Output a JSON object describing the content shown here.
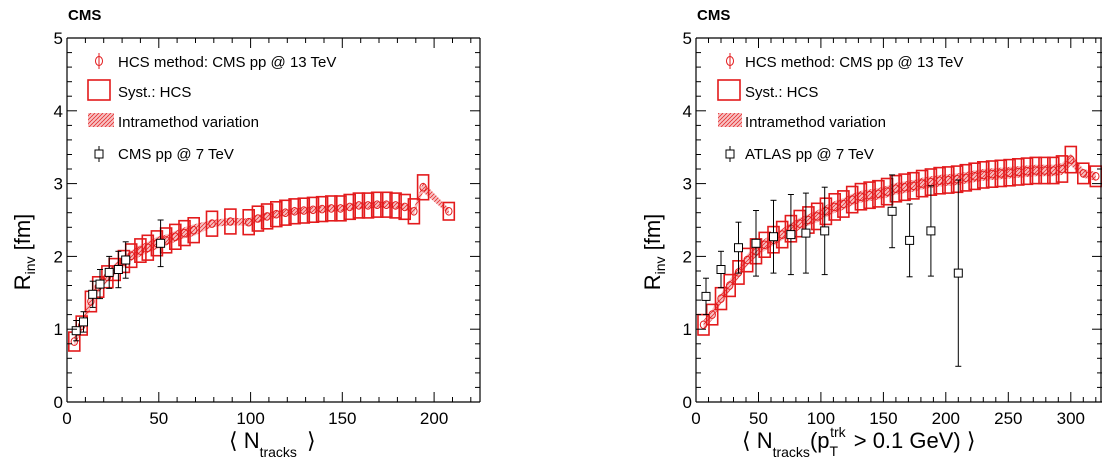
{
  "chart_data": [
    {
      "id": "left",
      "type": "scatter",
      "label": "CMS",
      "xlabel_main": "⟨ N",
      "xlabel_sub": "tracks",
      "xlabel_tail": "⟩",
      "ylabel_main": "R",
      "ylabel_sub": "inv",
      "ylabel_tail": " [fm]",
      "xlim": [
        0,
        225
      ],
      "ylim": [
        0,
        5
      ],
      "xticks": [
        0,
        50,
        100,
        150,
        200
      ],
      "yticks": [
        0,
        1,
        2,
        3,
        4,
        5
      ],
      "legend": {
        "hcs": "HCS method: CMS pp @ 13 TeV",
        "syst": "Syst.: HCS",
        "variation": "Intramethod variation",
        "ref": "CMS pp @ 7 TeV"
      },
      "series": [
        {
          "name": "HCS method: CMS pp @ 13 TeV",
          "x": [
            4,
            8,
            13,
            17,
            22,
            26,
            31,
            35,
            40,
            44,
            49,
            54,
            59,
            64,
            69,
            79,
            89,
            99,
            104,
            109,
            114,
            119,
            124,
            129,
            134,
            139,
            144,
            149,
            154,
            159,
            164,
            169,
            174,
            179,
            184,
            189,
            194,
            208
          ],
          "y": [
            0.83,
            1.05,
            1.38,
            1.58,
            1.72,
            1.82,
            1.93,
            2.01,
            2.08,
            2.12,
            2.18,
            2.22,
            2.27,
            2.32,
            2.36,
            2.45,
            2.48,
            2.47,
            2.52,
            2.55,
            2.58,
            2.6,
            2.62,
            2.63,
            2.64,
            2.65,
            2.66,
            2.66,
            2.68,
            2.7,
            2.7,
            2.71,
            2.71,
            2.7,
            2.68,
            2.62,
            2.95,
            2.62
          ],
          "syst": [
            0.13,
            0.13,
            0.14,
            0.14,
            0.15,
            0.15,
            0.15,
            0.16,
            0.16,
            0.17,
            0.17,
            0.17,
            0.17,
            0.17,
            0.17,
            0.17,
            0.17,
            0.17,
            0.17,
            0.17,
            0.17,
            0.17,
            0.17,
            0.17,
            0.17,
            0.17,
            0.17,
            0.17,
            0.17,
            0.17,
            0.17,
            0.17,
            0.17,
            0.17,
            0.17,
            0.17,
            0.17,
            0.12
          ],
          "var_lo": [
            0.77,
            0.98,
            1.3,
            1.5,
            1.65,
            1.74,
            1.85,
            1.94,
            2.0,
            2.05,
            2.1,
            2.15,
            2.2,
            2.25,
            2.28,
            2.4,
            2.43,
            2.42,
            2.47,
            2.5,
            2.53,
            2.56,
            2.58,
            2.59,
            2.6,
            2.61,
            2.62,
            2.62,
            2.64,
            2.66,
            2.66,
            2.67,
            2.67,
            2.66,
            2.64,
            2.58,
            2.88,
            2.58
          ],
          "var_hi": [
            0.9,
            1.12,
            1.46,
            1.66,
            1.8,
            1.9,
            2.01,
            2.08,
            2.16,
            2.2,
            2.27,
            2.3,
            2.35,
            2.4,
            2.44,
            2.5,
            2.53,
            2.52,
            2.57,
            2.6,
            2.63,
            2.64,
            2.66,
            2.67,
            2.68,
            2.69,
            2.7,
            2.7,
            2.72,
            2.74,
            2.74,
            2.75,
            2.75,
            2.74,
            2.72,
            2.66,
            3.02,
            2.66
          ]
        },
        {
          "name": "CMS pp @ 7 TeV",
          "x": [
            5,
            9,
            14,
            18,
            23,
            28,
            32,
            51
          ],
          "y": [
            0.98,
            1.1,
            1.48,
            1.62,
            1.78,
            1.82,
            1.95,
            2.18
          ],
          "err": [
            0.14,
            0.14,
            0.18,
            0.2,
            0.22,
            0.25,
            0.25,
            0.32
          ]
        }
      ]
    },
    {
      "id": "right",
      "type": "scatter",
      "label": "CMS",
      "xlabel_main": "⟨ N",
      "xlabel_sub": "tracks",
      "xlabel_mid": "(p",
      "xlabel_sub2": "T",
      "xlabel_sup": "trk",
      "xlabel_tail": " > 0.1 GeV) ⟩",
      "ylabel_main": "R",
      "ylabel_sub": "inv",
      "ylabel_tail": " [fm]",
      "xlim": [
        0,
        325
      ],
      "ylim": [
        0,
        5
      ],
      "xticks": [
        0,
        50,
        100,
        150,
        200,
        250,
        300
      ],
      "yticks": [
        0,
        1,
        2,
        3,
        4,
        5
      ],
      "legend": {
        "hcs": "HCS method: CMS pp @ 13 TeV",
        "syst": "Syst.: HCS",
        "variation": "Intramethod variation",
        "ref": "ATLAS pp @ 7 TeV"
      },
      "series": [
        {
          "name": "HCS method: CMS pp @ 13 TeV",
          "x": [
            6,
            13,
            20,
            27,
            34,
            41,
            48,
            55,
            62,
            69,
            76,
            83,
            90,
            97,
            104,
            111,
            118,
            125,
            132,
            139,
            146,
            153,
            160,
            167,
            174,
            181,
            188,
            195,
            202,
            209,
            216,
            223,
            230,
            237,
            244,
            251,
            258,
            265,
            272,
            279,
            286,
            293,
            300,
            310,
            320
          ],
          "y": [
            1.06,
            1.2,
            1.42,
            1.6,
            1.78,
            1.95,
            2.07,
            2.16,
            2.23,
            2.3,
            2.38,
            2.45,
            2.5,
            2.55,
            2.62,
            2.68,
            2.72,
            2.78,
            2.82,
            2.84,
            2.86,
            2.89,
            2.93,
            2.95,
            2.97,
            3.0,
            3.02,
            3.04,
            3.05,
            3.06,
            3.08,
            3.1,
            3.12,
            3.13,
            3.14,
            3.15,
            3.16,
            3.17,
            3.18,
            3.18,
            3.18,
            3.2,
            3.33,
            3.14,
            3.1
          ],
          "syst": [
            0.14,
            0.14,
            0.15,
            0.15,
            0.16,
            0.16,
            0.17,
            0.17,
            0.18,
            0.18,
            0.18,
            0.18,
            0.18,
            0.18,
            0.18,
            0.18,
            0.18,
            0.18,
            0.18,
            0.18,
            0.18,
            0.18,
            0.18,
            0.18,
            0.18,
            0.18,
            0.18,
            0.18,
            0.18,
            0.18,
            0.18,
            0.18,
            0.18,
            0.18,
            0.18,
            0.18,
            0.18,
            0.18,
            0.18,
            0.18,
            0.18,
            0.18,
            0.18,
            0.14,
            0.14
          ],
          "var_lo": [
            1.0,
            1.13,
            1.35,
            1.52,
            1.7,
            1.87,
            1.99,
            2.08,
            2.15,
            2.22,
            2.3,
            2.37,
            2.42,
            2.47,
            2.54,
            2.6,
            2.64,
            2.7,
            2.74,
            2.76,
            2.78,
            2.81,
            2.85,
            2.87,
            2.89,
            2.92,
            2.94,
            2.96,
            2.97,
            2.98,
            3.0,
            3.02,
            3.04,
            3.05,
            3.06,
            3.07,
            3.08,
            3.09,
            3.1,
            3.1,
            3.1,
            3.12,
            3.25,
            3.08,
            3.04
          ],
          "var_hi": [
            1.12,
            1.27,
            1.49,
            1.68,
            1.86,
            2.03,
            2.15,
            2.24,
            2.31,
            2.38,
            2.46,
            2.53,
            2.58,
            2.63,
            2.7,
            2.76,
            2.8,
            2.86,
            2.9,
            2.92,
            2.94,
            2.97,
            3.01,
            3.03,
            3.05,
            3.08,
            3.1,
            3.12,
            3.13,
            3.14,
            3.16,
            3.18,
            3.2,
            3.21,
            3.22,
            3.23,
            3.24,
            3.25,
            3.26,
            3.26,
            3.26,
            3.28,
            3.41,
            3.2,
            3.16
          ]
        },
        {
          "name": "ATLAS pp @ 7 TeV",
          "x": [
            8,
            20,
            34,
            48,
            62,
            76,
            88,
            103,
            157,
            171,
            188,
            210
          ],
          "y": [
            1.45,
            1.82,
            2.12,
            2.18,
            2.27,
            2.3,
            2.32,
            2.35,
            2.62,
            2.22,
            2.35,
            1.77
          ],
          "err": [
            0.25,
            0.25,
            0.35,
            0.45,
            0.5,
            0.55,
            0.55,
            0.6,
            0.5,
            0.5,
            0.62,
            1.28
          ]
        }
      ]
    }
  ]
}
